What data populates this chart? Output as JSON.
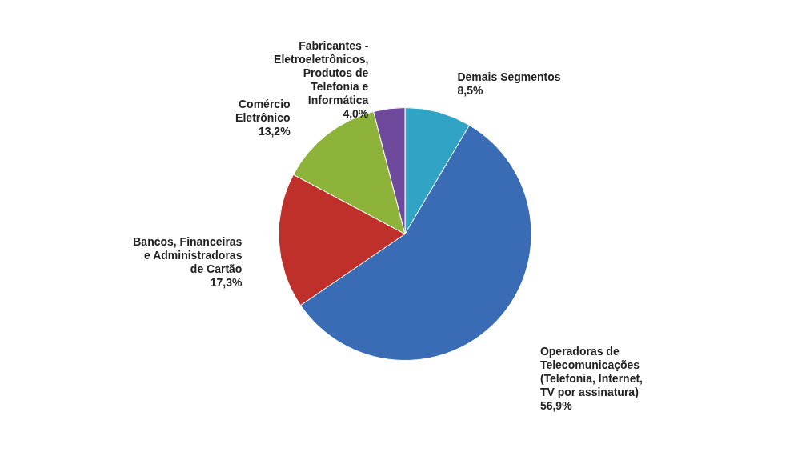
{
  "chart_data": {
    "type": "pie",
    "categories": [
      "Demais Segmentos",
      "Operadoras de\nTelecomunicações\n(Telefonia, Internet,\nTV por assinatura)",
      "Bancos, Financeiras\ne Administradoras\nde Cartão",
      "Comércio\nEletrônico",
      "Fabricantes -\nEletroeletrônicos,\nProdutos de\nTelefonia e\nInformática"
    ],
    "values": [
      8.5,
      56.9,
      17.3,
      13.2,
      4.0
    ],
    "colors": [
      "#31a3c4",
      "#3a6bb5",
      "#c0302b",
      "#8db33a",
      "#6f4a9c"
    ],
    "value_labels": [
      "8,5%",
      "56,9%",
      "17,3%",
      "13,2%",
      "4,0%"
    ]
  }
}
